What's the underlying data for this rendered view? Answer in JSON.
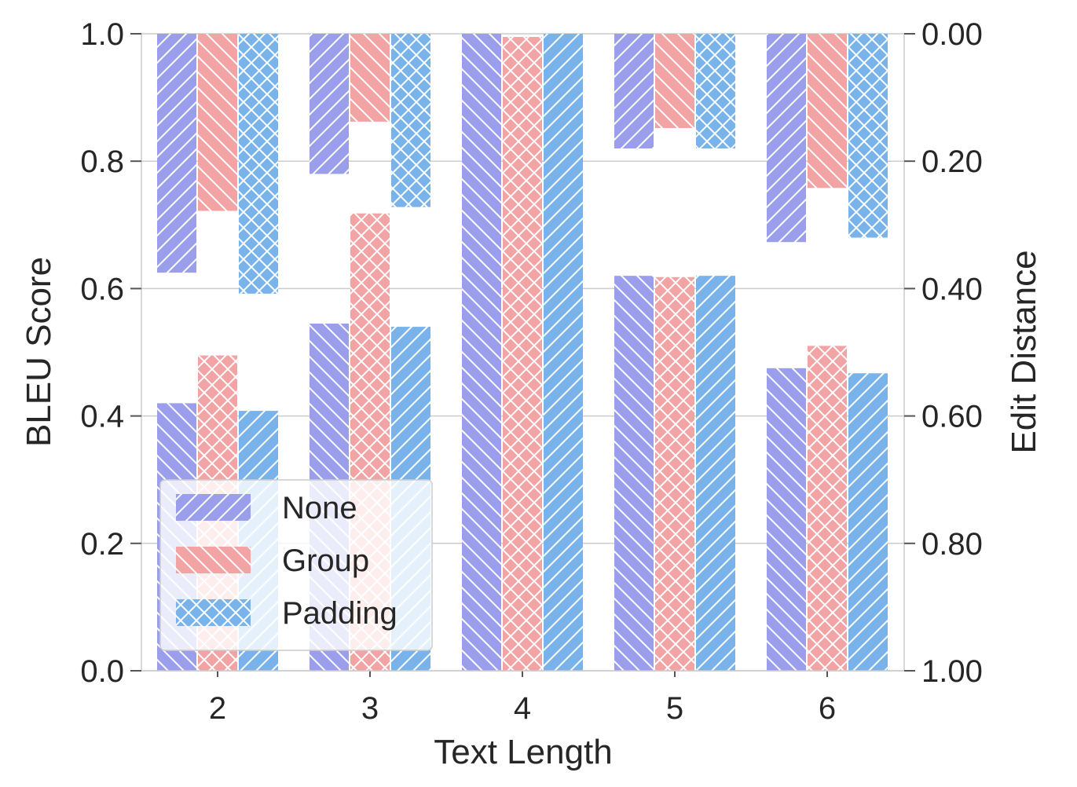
{
  "chart_data": {
    "type": "bar",
    "categories": [
      "2",
      "3",
      "4",
      "5",
      "6"
    ],
    "xlabel": "Text Length",
    "ylabel_left": "BLEU Score",
    "ylabel_right": "Edit Distance",
    "ylim_left": [
      0,
      1
    ],
    "ylim_right": [
      0,
      1
    ],
    "right_axis_inverted": true,
    "left_ticks": [
      "0.0",
      "0.2",
      "0.4",
      "0.6",
      "0.8",
      "1.0"
    ],
    "right_ticks": [
      "0.00",
      "0.20",
      "0.40",
      "0.60",
      "0.80",
      "1.00"
    ],
    "grid": true,
    "legend_position": "bottom-left",
    "series": [
      {
        "name": "None",
        "color": "#9b9eea",
        "bleu": [
          0.42,
          0.545,
          1.0,
          0.62,
          0.475
        ],
        "edit_distance": [
          0.375,
          0.22,
          0.0,
          0.18,
          0.327
        ],
        "bleu_hatch": "back-diagonal",
        "edit_hatch": "forward-diagonal",
        "legend_hatch": "forward-diagonal"
      },
      {
        "name": "Group",
        "color": "#f2a3a3",
        "bleu": [
          0.495,
          0.718,
          0.995,
          0.618,
          0.51
        ],
        "edit_distance": [
          0.278,
          0.138,
          0.0,
          0.148,
          0.242
        ],
        "bleu_hatch": "cross",
        "edit_hatch": "back-diagonal",
        "legend_hatch": "back-diagonal"
      },
      {
        "name": "Padding",
        "color": "#7ab3ea",
        "bleu": [
          0.408,
          0.54,
          1.0,
          0.62,
          0.467
        ],
        "edit_distance": [
          0.408,
          0.272,
          0.0,
          0.18,
          0.32
        ],
        "bleu_hatch": "forward-diagonal",
        "edit_hatch": "cross",
        "legend_hatch": "cross"
      }
    ]
  }
}
